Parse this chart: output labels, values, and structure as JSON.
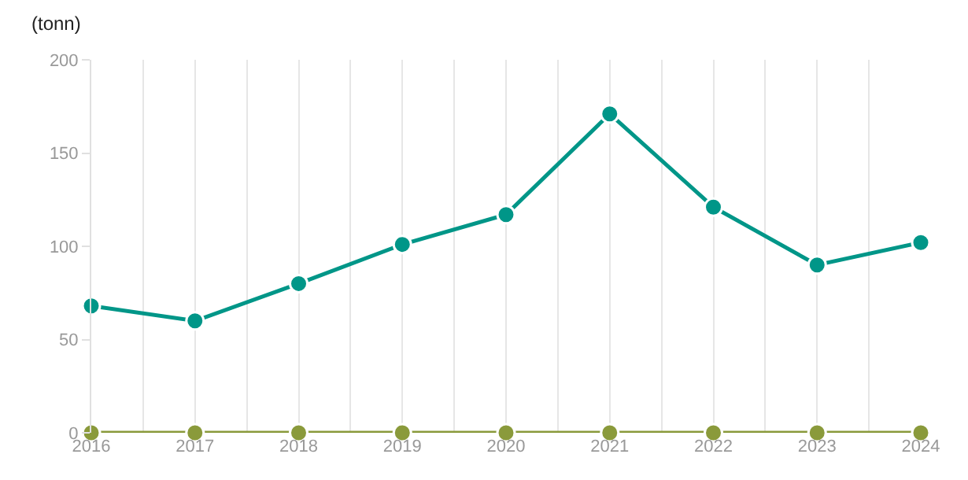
{
  "chart_data": {
    "type": "line",
    "ylabel": "(tonn)",
    "x": [
      2016,
      2017,
      2018,
      2019,
      2020,
      2021,
      2022,
      2023,
      2024
    ],
    "series": [
      {
        "color": "#8a9a3b",
        "values": [
          0,
          0,
          0,
          0,
          0,
          0,
          0,
          0,
          0
        ]
      },
      {
        "color": "#009688",
        "values": [
          68,
          60,
          80,
          101,
          117,
          171,
          121,
          90,
          102
        ]
      }
    ],
    "xlim": [
      2016,
      2024
    ],
    "xticks": [
      2016,
      {
        "value": 2016.5,
        "label": null
      },
      2017,
      {
        "value": 2017.5,
        "label": null
      },
      2018,
      {
        "value": 2018.5,
        "label": null
      },
      2019,
      {
        "value": 2019.5,
        "label": null
      },
      2020,
      {
        "value": 2020.5,
        "label": null
      },
      2021,
      {
        "value": 2021.5,
        "label": null
      },
      2022,
      {
        "value": 2022.5,
        "label": null
      },
      2023,
      {
        "value": 2023.5,
        "label": null
      },
      2024
    ],
    "ylim": [
      0,
      200
    ],
    "yticks": [
      0,
      50,
      100,
      150,
      200
    ],
    "grid": "x",
    "marker": "circle",
    "line_style": "solid"
  }
}
